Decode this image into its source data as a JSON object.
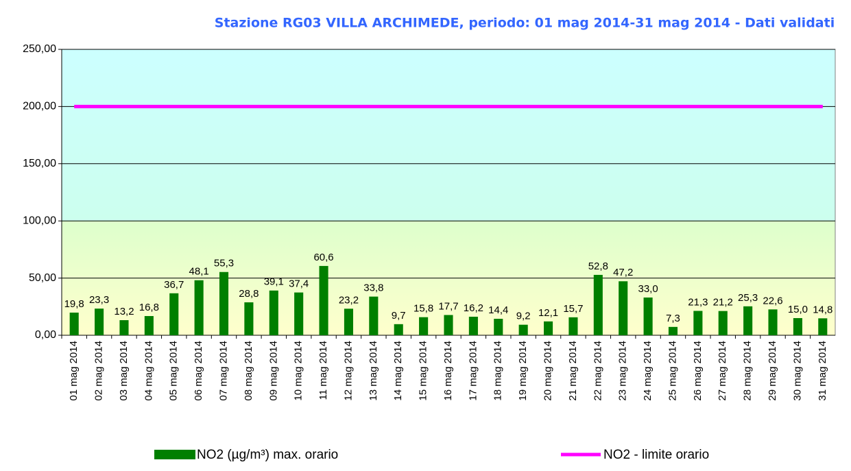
{
  "chart_data": {
    "type": "bar",
    "title": "Stazione RG03 VILLA ARCHIMEDE, periodo: 01 mag 2014-31 mag 2014 - Dati validati",
    "categories": [
      "01 mag 2014",
      "02 mag 2014",
      "03 mag 2014",
      "04 mag 2014",
      "05 mag 2014",
      "06 mag 2014",
      "07 mag 2014",
      "08 mag 2014",
      "09 mag 2014",
      "10 mag 2014",
      "11 mag 2014",
      "12 mag 2014",
      "13 mag 2014",
      "14 mag 2014",
      "15 mag 2014",
      "16 mag 2014",
      "17 mag 2014",
      "18 mag 2014",
      "19 mag 2014",
      "20 mag 2014",
      "21 mag 2014",
      "22 mag 2014",
      "23 mag 2014",
      "24 mag 2014",
      "25 mag 2014",
      "26 mag 2014",
      "27 mag 2014",
      "28 mag 2014",
      "29 mag 2014",
      "30 mag 2014",
      "31 mag 2014"
    ],
    "series": [
      {
        "name": "NO2 (µg/m³) max. orario",
        "type": "bar",
        "color": "#007f00",
        "values": [
          19.8,
          23.3,
          13.2,
          16.8,
          36.7,
          48.1,
          55.3,
          28.8,
          39.1,
          37.4,
          60.6,
          23.2,
          33.8,
          9.7,
          15.8,
          17.7,
          16.2,
          14.4,
          9.2,
          12.1,
          15.7,
          52.8,
          47.2,
          33.0,
          7.3,
          21.3,
          21.2,
          25.3,
          22.6,
          15.0,
          14.8
        ],
        "value_labels": [
          "19,8",
          "23,3",
          "13,2",
          "16,8",
          "36,7",
          "48,1",
          "55,3",
          "28,8",
          "39,1",
          "37,4",
          "60,6",
          "23,2",
          "33,8",
          "9,7",
          "15,8",
          "17,7",
          "16,2",
          "14,4",
          "9,2",
          "12,1",
          "15,7",
          "52,8",
          "47,2",
          "33,0",
          "7,3",
          "21,3",
          "21,2",
          "25,3",
          "22,6",
          "15,0",
          "14,8"
        ]
      },
      {
        "name": "NO2 - limite orario",
        "type": "line",
        "color": "#ff00ff",
        "values": [
          200,
          200,
          200,
          200,
          200,
          200,
          200,
          200,
          200,
          200,
          200,
          200,
          200,
          200,
          200,
          200,
          200,
          200,
          200,
          200,
          200,
          200,
          200,
          200,
          200,
          200,
          200,
          200,
          200,
          200,
          200
        ]
      }
    ],
    "ylim": [
      0,
      250
    ],
    "yticks": [
      {
        "value": 0,
        "label": "0,00"
      },
      {
        "value": 50,
        "label": "50,00"
      },
      {
        "value": 100,
        "label": "100,00"
      },
      {
        "value": 150,
        "label": "150,00"
      },
      {
        "value": 200,
        "label": "200,00"
      },
      {
        "value": 250,
        "label": "250,00"
      }
    ],
    "grid": true
  }
}
